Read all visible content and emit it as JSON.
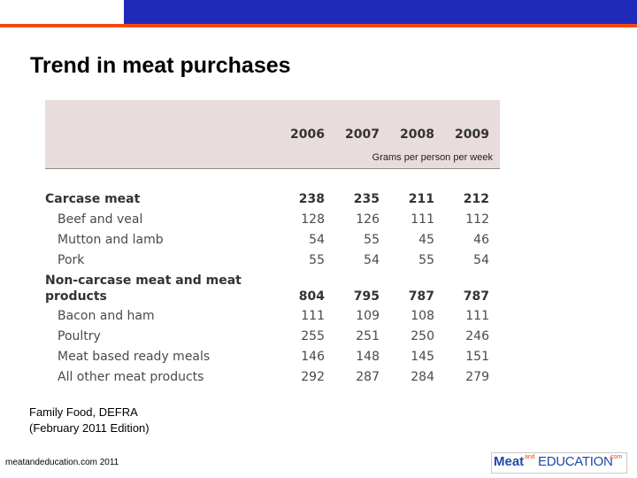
{
  "title": "Trend in meat purchases",
  "table": {
    "years": [
      "2006",
      "2007",
      "2008",
      "2009"
    ],
    "units": "Grams per person per week",
    "rows": [
      {
        "label": "Carcase meat",
        "values": [
          "238",
          "235",
          "211",
          "212"
        ]
      },
      {
        "label": "Beef and veal",
        "values": [
          "128",
          "126",
          "111",
          "112"
        ]
      },
      {
        "label": "Mutton and lamb",
        "values": [
          "54",
          "55",
          "45",
          "46"
        ]
      },
      {
        "label": "Pork",
        "values": [
          "55",
          "54",
          "55",
          "54"
        ]
      },
      {
        "label": "Non-carcase meat and meat",
        "values": []
      },
      {
        "label": "products",
        "values": [
          "804",
          "795",
          "787",
          "787"
        ]
      },
      {
        "label": "Bacon and ham",
        "values": [
          "111",
          "109",
          "108",
          "111"
        ]
      },
      {
        "label": "Poultry",
        "values": [
          "255",
          "251",
          "250",
          "246"
        ]
      },
      {
        "label": "Meat based ready meals",
        "values": [
          "146",
          "148",
          "145",
          "151"
        ]
      },
      {
        "label": "All other meat products",
        "values": [
          "292",
          "287",
          "284",
          "279"
        ]
      }
    ]
  },
  "source": {
    "line1": "Family Food, DEFRA",
    "line2": "(February 2011 Edition)"
  },
  "footer": {
    "left": "meatandeducation.com 2011",
    "logo_meat": "Meat",
    "logo_and": "and",
    "logo_education": "EDUCATION",
    "logo_com": ".com"
  },
  "colors": {
    "top_band": "#1f2ab8",
    "accent_line": "#f04a12",
    "table_header_bg": "#e8dcdc"
  }
}
